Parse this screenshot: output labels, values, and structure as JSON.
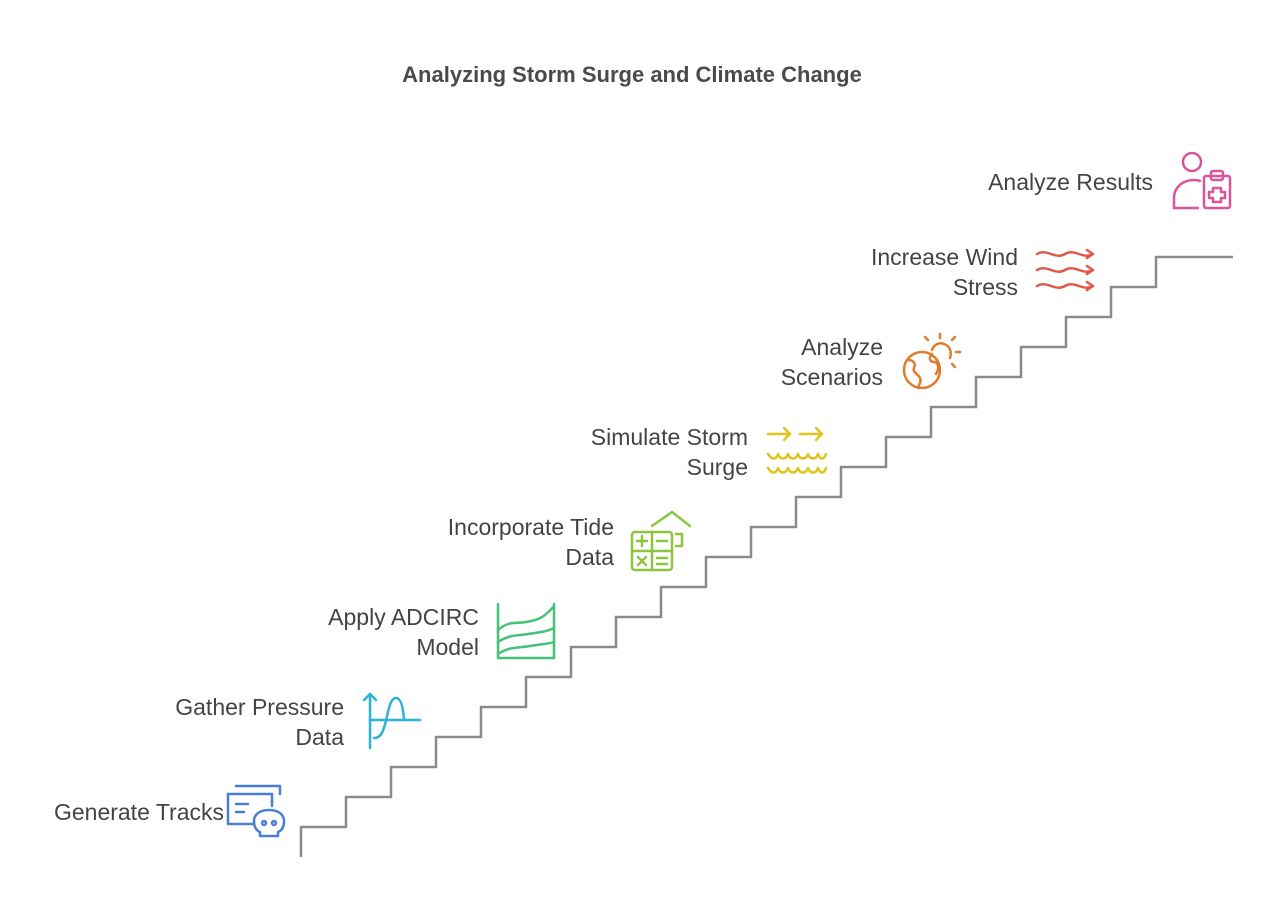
{
  "title": "Analyzing Storm Surge and Climate Change",
  "steps": [
    {
      "label": "Generate Tracks",
      "icon": "document-skull-icon",
      "color": "#4a7fd6"
    },
    {
      "label": "Gather Pressure Data",
      "icon": "pressure-wave-icon",
      "color": "#2bb3d6"
    },
    {
      "label": "Apply ADCIRC Model",
      "icon": "wave-chart-icon",
      "color": "#45c27a"
    },
    {
      "label": "Incorporate Tide Data",
      "icon": "house-calculator-icon",
      "color": "#8cc63f"
    },
    {
      "label": "Simulate Storm Surge",
      "icon": "arrows-waves-icon",
      "color": "#e3c21a"
    },
    {
      "label": "Analyze Scenarios",
      "icon": "globe-sun-icon",
      "color": "#e07c2c"
    },
    {
      "label": "Increase Wind Stress",
      "icon": "wind-icon",
      "color": "#e05a4a"
    },
    {
      "label": "Analyze Results",
      "icon": "person-clipboard-icon",
      "color": "#d9549a"
    }
  ],
  "stair_color": "#8a8a8a"
}
